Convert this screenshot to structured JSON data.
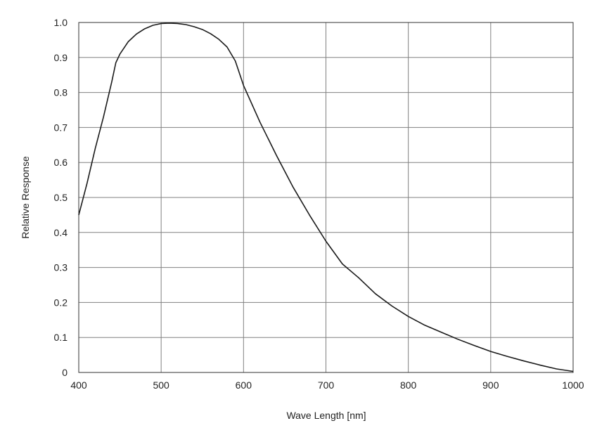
{
  "chart_data": {
    "type": "line",
    "title": "",
    "xlabel": "Wave Length [nm]",
    "ylabel": "Relative Response",
    "xlim": [
      400,
      1000
    ],
    "ylim": [
      0,
      1.0
    ],
    "xticks": [
      400,
      500,
      600,
      700,
      800,
      900,
      1000
    ],
    "xtick_labels": [
      "400",
      "500",
      "600",
      "700",
      "800",
      "900",
      "1000"
    ],
    "yticks": [
      0,
      0.1,
      0.2,
      0.3,
      0.4,
      0.5,
      0.6,
      0.7,
      0.8,
      0.9,
      1.0
    ],
    "ytick_labels": [
      "0",
      "0.1",
      "0.2",
      "0.3",
      "0.4",
      "0.5",
      "0.6",
      "0.7",
      "0.8",
      "0.9",
      "1.0"
    ],
    "grid": true,
    "legend": "none",
    "line_color": "#1a1a1a",
    "grid_color": "#808080",
    "series": [
      {
        "x": [
          400,
          410,
          420,
          430,
          440,
          445,
          450,
          460,
          470,
          480,
          490,
          500,
          510,
          520,
          530,
          540,
          550,
          560,
          570,
          580,
          590,
          600,
          620,
          640,
          660,
          680,
          700,
          720,
          740,
          760,
          780,
          800,
          820,
          840,
          860,
          880,
          900,
          920,
          940,
          960,
          980,
          1000
        ],
        "y": [
          0.45,
          0.54,
          0.64,
          0.73,
          0.83,
          0.885,
          0.91,
          0.945,
          0.967,
          0.982,
          0.992,
          0.997,
          0.998,
          0.997,
          0.994,
          0.988,
          0.98,
          0.968,
          0.952,
          0.93,
          0.89,
          0.82,
          0.715,
          0.62,
          0.53,
          0.45,
          0.375,
          0.31,
          0.27,
          0.225,
          0.19,
          0.16,
          0.135,
          0.115,
          0.095,
          0.077,
          0.06,
          0.046,
          0.033,
          0.021,
          0.01,
          0.003
        ]
      }
    ]
  }
}
